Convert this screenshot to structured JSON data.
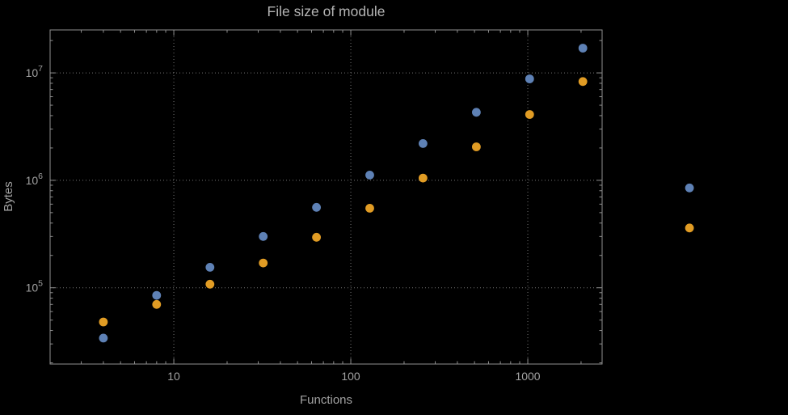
{
  "title": "File size of module",
  "colors": {
    "background": "#000000",
    "frame": "#8f8f8f",
    "grid": "#757575",
    "text": "#a2a2a2",
    "title_text": "#b4b4b4",
    "series_blue": "#5e81b5",
    "series_orange": "#e19c24"
  },
  "chart_data": {
    "type": "scatter",
    "title": "File size of module",
    "xlabel": "Functions",
    "ylabel": "Bytes",
    "xscale": "log",
    "yscale": "log",
    "grid": true,
    "legend_position": "none",
    "xlim": [
      2,
      2630
    ],
    "ylim": [
      19500,
      25100000
    ],
    "x_ticks": [
      {
        "value": 10,
        "label": "10"
      },
      {
        "value": 100,
        "label": "100"
      },
      {
        "value": 1000,
        "label": "1000"
      }
    ],
    "y_ticks": [
      {
        "value": 100000,
        "base": "10",
        "exp": "5"
      },
      {
        "value": 1000000,
        "base": "10",
        "exp": "6"
      },
      {
        "value": 10000000,
        "base": "10",
        "exp": "7"
      }
    ],
    "series": [
      {
        "name": "blue",
        "color": "#5e81b5",
        "x": [
          4,
          8,
          16,
          32,
          64,
          128,
          256,
          512,
          1024,
          2048,
          8192
        ],
        "y": [
          34000,
          85000,
          155000,
          300000,
          560000,
          1120000,
          2200000,
          4300000,
          8800000,
          17000000,
          850000
        ]
      },
      {
        "name": "orange",
        "color": "#e19c24",
        "x": [
          4,
          8,
          16,
          32,
          64,
          128,
          256,
          512,
          1024,
          2048,
          8192
        ],
        "y": [
          48000,
          70000,
          108000,
          170000,
          295000,
          550000,
          1050000,
          2050000,
          4100000,
          8300000,
          360000
        ]
      }
    ]
  }
}
